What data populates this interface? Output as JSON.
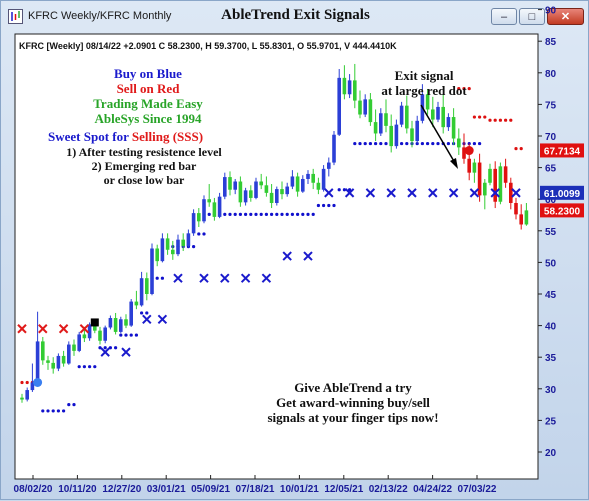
{
  "window": {
    "tab_title": "KFRC Weekly/KFRC Monthly",
    "chart_title": "AbleTrend Exit Signals",
    "buttons": {
      "minimize": "–",
      "maximize": "□",
      "close": "✕"
    }
  },
  "colors": {
    "up_bar": "#2b3fd6",
    "up_bar_green": "#33cc33",
    "down_bar": "#e01010",
    "buy_marker": "#1a1acc",
    "sell_marker": "#e01a1a",
    "stop_blue": "#1010cc",
    "stop_red": "#dd1111",
    "price_box_red": "#e01010",
    "price_box_blue": "#1b2fb8"
  },
  "chart_data": {
    "type": "candlestick",
    "info_line": "KFRC [Weekly] 08/14/22 +2.0901 C 58.2300, H 59.3700, L 55.8301, O 55.9701, V 444.4410K",
    "x_tick_labels": [
      "08/02/20",
      "10/11/20",
      "12/27/20",
      "03/01/21",
      "05/09/21",
      "07/18/21",
      "10/01/21",
      "12/05/21",
      "02/13/22",
      "04/24/22",
      "07/03/22"
    ],
    "y_ticks": [
      20,
      25,
      30,
      35,
      40,
      45,
      50,
      55,
      60,
      65,
      70,
      75,
      80,
      85,
      90
    ],
    "ylim": [
      20,
      90
    ],
    "price_labels": [
      {
        "value": 67.7134,
        "text": "67.7134",
        "color": "red"
      },
      {
        "value": 61.0099,
        "text": "61.0099",
        "color": "blue"
      },
      {
        "value": 58.23,
        "text": "58.2300",
        "color": "red"
      }
    ],
    "candles": [
      [
        28.6,
        29.2,
        27.8,
        28.3
      ],
      [
        28.3,
        30.2,
        28.0,
        29.8
      ],
      [
        29.8,
        34.0,
        29.5,
        31.0
      ],
      [
        31.0,
        42.2,
        30.6,
        37.5
      ],
      [
        37.5,
        38.2,
        33.8,
        34.5
      ],
      [
        34.5,
        35.2,
        33.0,
        34.1
      ],
      [
        34.1,
        35.0,
        32.4,
        33.2
      ],
      [
        33.2,
        35.6,
        32.8,
        35.2
      ],
      [
        35.2,
        36.0,
        33.5,
        34.0
      ],
      [
        34.0,
        37.5,
        33.8,
        37.0
      ],
      [
        37.0,
        37.8,
        35.2,
        36.0
      ],
      [
        36.0,
        39.0,
        35.8,
        38.6
      ],
      [
        38.6,
        39.8,
        37.4,
        38.0
      ],
      [
        38.0,
        40.5,
        37.6,
        40.2
      ],
      [
        40.2,
        41.0,
        38.8,
        39.2
      ],
      [
        39.2,
        39.8,
        37.0,
        37.6
      ],
      [
        37.6,
        40.0,
        37.2,
        39.7
      ],
      [
        39.7,
        41.6,
        39.4,
        41.2
      ],
      [
        41.2,
        42.0,
        38.6,
        39.0
      ],
      [
        39.0,
        41.4,
        38.8,
        41.0
      ],
      [
        41.0,
        41.8,
        39.6,
        40.0
      ],
      [
        40.0,
        44.2,
        39.8,
        43.8
      ],
      [
        43.8,
        45.5,
        42.6,
        43.2
      ],
      [
        43.2,
        48.5,
        43.0,
        47.5
      ],
      [
        47.5,
        48.4,
        44.0,
        45.0
      ],
      [
        45.0,
        53.0,
        44.8,
        52.2
      ],
      [
        52.2,
        52.8,
        49.4,
        50.2
      ],
      [
        50.2,
        54.6,
        50.0,
        53.8
      ],
      [
        53.8,
        54.6,
        51.2,
        52.0
      ],
      [
        52.0,
        53.4,
        50.4,
        51.3
      ],
      [
        51.3,
        54.4,
        51.0,
        53.6
      ],
      [
        53.6,
        54.6,
        51.8,
        52.6
      ],
      [
        52.6,
        55.2,
        52.4,
        54.6
      ],
      [
        54.6,
        58.4,
        54.2,
        57.8
      ],
      [
        57.8,
        58.6,
        55.6,
        56.5
      ],
      [
        56.5,
        60.6,
        56.2,
        60.0
      ],
      [
        60.0,
        62.4,
        58.8,
        59.5
      ],
      [
        59.5,
        60.2,
        56.6,
        57.2
      ],
      [
        57.2,
        61.0,
        57.0,
        60.4
      ],
      [
        60.4,
        64.2,
        60.0,
        63.5
      ],
      [
        63.5,
        64.4,
        60.6,
        61.5
      ],
      [
        61.5,
        63.2,
        60.8,
        62.8
      ],
      [
        62.8,
        63.6,
        58.8,
        59.5
      ],
      [
        59.5,
        61.8,
        59.0,
        61.4
      ],
      [
        61.4,
        62.2,
        59.6,
        60.2
      ],
      [
        60.2,
        63.4,
        60.0,
        62.8
      ],
      [
        62.8,
        64.0,
        61.6,
        62.2
      ],
      [
        62.2,
        63.6,
        60.4,
        61.0
      ],
      [
        61.0,
        62.4,
        58.6,
        59.4
      ],
      [
        59.4,
        62.0,
        59.0,
        61.6
      ],
      [
        61.6,
        62.8,
        60.0,
        60.8
      ],
      [
        60.8,
        62.6,
        60.4,
        62.0
      ],
      [
        62.0,
        64.6,
        61.6,
        63.6
      ],
      [
        63.6,
        64.2,
        60.4,
        61.2
      ],
      [
        61.2,
        63.8,
        61.0,
        63.2
      ],
      [
        63.2,
        64.6,
        62.4,
        64.0
      ],
      [
        64.0,
        64.8,
        61.6,
        62.6
      ],
      [
        62.6,
        63.4,
        60.8,
        61.5
      ],
      [
        61.5,
        65.4,
        61.2,
        64.8
      ],
      [
        64.8,
        66.6,
        63.6,
        65.8
      ],
      [
        65.8,
        70.8,
        65.4,
        70.2
      ],
      [
        70.2,
        80.6,
        70.0,
        79.2
      ],
      [
        79.2,
        81.2,
        75.8,
        76.6
      ],
      [
        76.6,
        79.8,
        76.0,
        78.8
      ],
      [
        78.8,
        81.4,
        74.4,
        75.6
      ],
      [
        75.6,
        77.2,
        72.8,
        73.4
      ],
      [
        73.4,
        76.6,
        73.0,
        75.8
      ],
      [
        75.8,
        76.8,
        71.6,
        72.2
      ],
      [
        72.2,
        74.2,
        69.2,
        70.4
      ],
      [
        70.4,
        74.4,
        70.0,
        73.6
      ],
      [
        73.6,
        75.8,
        70.6,
        71.6
      ],
      [
        71.6,
        73.4,
        67.4,
        68.4
      ],
      [
        68.4,
        72.6,
        68.0,
        71.8
      ],
      [
        71.8,
        75.4,
        71.4,
        74.8
      ],
      [
        74.8,
        76.4,
        70.4,
        71.2
      ],
      [
        71.2,
        72.4,
        68.2,
        69.2
      ],
      [
        69.2,
        73.2,
        68.8,
        72.4
      ],
      [
        72.4,
        78.2,
        72.0,
        76.6
      ],
      [
        76.6,
        77.4,
        73.4,
        74.2
      ],
      [
        74.2,
        76.2,
        71.4,
        72.6
      ],
      [
        72.6,
        75.4,
        72.2,
        74.6
      ],
      [
        74.6,
        76.6,
        70.4,
        71.4
      ],
      [
        71.4,
        73.6,
        70.8,
        73.0
      ],
      [
        73.0,
        74.4,
        68.6,
        69.6
      ],
      [
        69.6,
        71.2,
        67.0,
        68.2
      ],
      [
        68.2,
        70.4,
        65.6,
        66.4
      ],
      [
        66.4,
        68.8,
        63.0,
        64.2
      ],
      [
        64.2,
        66.4,
        62.6,
        65.8
      ],
      [
        65.8,
        67.2,
        59.6,
        60.6
      ],
      [
        60.6,
        63.2,
        58.4,
        62.6
      ],
      [
        62.6,
        65.6,
        62.2,
        64.8
      ],
      [
        64.8,
        66.0,
        58.6,
        59.6
      ],
      [
        59.6,
        65.8,
        59.2,
        65.2
      ],
      [
        65.2,
        66.4,
        61.8,
        62.6
      ],
      [
        62.6,
        63.4,
        58.4,
        59.4
      ],
      [
        59.4,
        60.2,
        56.8,
        57.6
      ],
      [
        57.6,
        59.2,
        55.2,
        56.0
      ],
      [
        56.0,
        59.4,
        55.8,
        58.23
      ]
    ],
    "red_stop_dots": [
      {
        "from": 0,
        "to": 2,
        "value": 31.0
      },
      {
        "from": 84,
        "to": 86,
        "value": 77.5
      },
      {
        "from": 87,
        "to": 89,
        "value": 73.0
      },
      {
        "from": 90,
        "to": 94,
        "value": 72.5
      },
      {
        "from": 95,
        "to": 96,
        "value": 68.0
      }
    ],
    "blue_stop_dots": [
      {
        "from": 4,
        "to": 8,
        "value": 26.5
      },
      {
        "from": 9,
        "to": 10,
        "value": 27.5
      },
      {
        "from": 11,
        "to": 14,
        "value": 33.5
      },
      {
        "from": 15,
        "to": 18,
        "value": 36.5
      },
      {
        "from": 19,
        "to": 22,
        "value": 38.5
      },
      {
        "from": 23,
        "to": 24,
        "value": 42.0
      },
      {
        "from": 25,
        "to": 27,
        "value": 47.5
      },
      {
        "from": 28,
        "to": 33,
        "value": 52.5
      },
      {
        "from": 34,
        "to": 35,
        "value": 54.5
      },
      {
        "from": 36,
        "to": 56,
        "value": 57.6
      },
      {
        "from": 57,
        "to": 60,
        "value": 59.0
      },
      {
        "from": 61,
        "to": 63,
        "value": 61.5
      },
      {
        "from": 64,
        "to": 88,
        "value": 68.8
      }
    ],
    "signal_dots": [
      {
        "index": 3,
        "value": 31.0,
        "color": "blue"
      },
      {
        "index": 86,
        "value": 67.7,
        "color": "red"
      }
    ],
    "blue_x_markers": [
      {
        "index": 16,
        "value": 35.8
      },
      {
        "index": 20,
        "value": 35.8
      },
      {
        "index": 24,
        "value": 41.0
      },
      {
        "index": 27,
        "value": 41.0
      },
      {
        "index": 30,
        "value": 47.5
      },
      {
        "index": 35,
        "value": 47.5
      },
      {
        "index": 39,
        "value": 47.5
      },
      {
        "index": 43,
        "value": 47.5
      },
      {
        "index": 47,
        "value": 47.5
      },
      {
        "index": 51,
        "value": 51.0
      },
      {
        "index": 55,
        "value": 51.0
      },
      {
        "index": 59,
        "value": 61.0
      },
      {
        "index": 63,
        "value": 61.0
      },
      {
        "index": 67,
        "value": 61.0
      },
      {
        "index": 71,
        "value": 61.0
      },
      {
        "index": 75,
        "value": 61.0
      },
      {
        "index": 79,
        "value": 61.0
      },
      {
        "index": 83,
        "value": 61.0
      },
      {
        "index": 87,
        "value": 61.0
      },
      {
        "index": 91,
        "value": 61.0
      },
      {
        "index": 95,
        "value": 61.0
      }
    ],
    "red_x_markers": [
      {
        "index": 0,
        "value": 39.5
      },
      {
        "index": 4,
        "value": 39.5
      },
      {
        "index": 8,
        "value": 39.5
      },
      {
        "index": 12,
        "value": 39.5
      }
    ],
    "black_square": {
      "index": 14,
      "value": 40.5
    },
    "annotations": {
      "buy_on_blue": "Buy on Blue",
      "sell_on_red": "Sell on Red",
      "trading_made_easy": "Trading Made Easy",
      "ablesys_since": "AbleSys Since 1994",
      "sweet_spot_prefix": "Sweet Spot for ",
      "sweet_spot_highlight": "Selling (SSS)",
      "point1": "1) After testing resistence level",
      "point2": "2) Emerging red bar",
      "point3": "or close low bar",
      "exit_line1": "Exit signal",
      "exit_line2": "at large red dot",
      "promo1": "Give AbleTrend a try",
      "promo2": "Get award-winning buy/sell",
      "promo3": "signals at your finger tips now!"
    }
  }
}
